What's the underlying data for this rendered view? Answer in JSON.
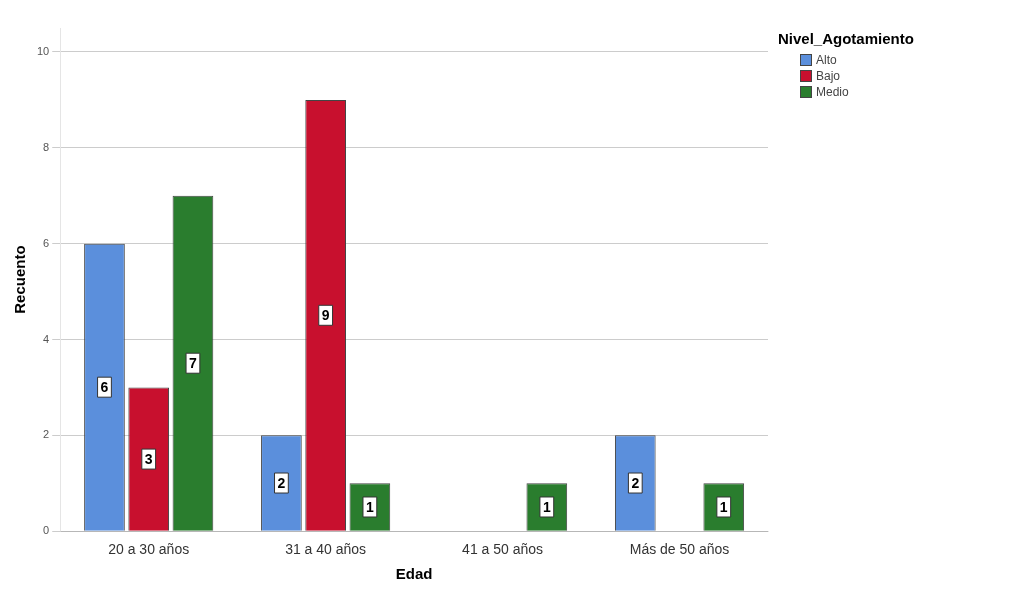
{
  "chart_data": {
    "type": "bar",
    "xlabel": "Edad",
    "ylabel": "Recuento",
    "legend_title": "Nivel_Agotamiento",
    "categories": [
      "20 a 30 años",
      "31 a 40 años",
      "41 a 50 años",
      "Más de 50 años"
    ],
    "series": [
      {
        "name": "Alto",
        "color": "#5b8fdc",
        "values": [
          6,
          2,
          0,
          2
        ],
        "value_labels": [
          "6",
          "2",
          null,
          "2"
        ]
      },
      {
        "name": "Bajo",
        "color": "#c8102e",
        "values": [
          3,
          9,
          0,
          0
        ],
        "value_labels": [
          "3",
          "9",
          null,
          null
        ]
      },
      {
        "name": "Medio",
        "color": "#2a7d2e",
        "values": [
          7,
          1,
          1,
          1
        ],
        "value_labels": [
          "7",
          "1",
          "1",
          "1"
        ]
      }
    ],
    "ylim": [
      0,
      10.5
    ],
    "yticks": [
      0,
      2,
      4,
      6,
      8,
      10
    ],
    "grid": "y",
    "legend": "top right"
  }
}
